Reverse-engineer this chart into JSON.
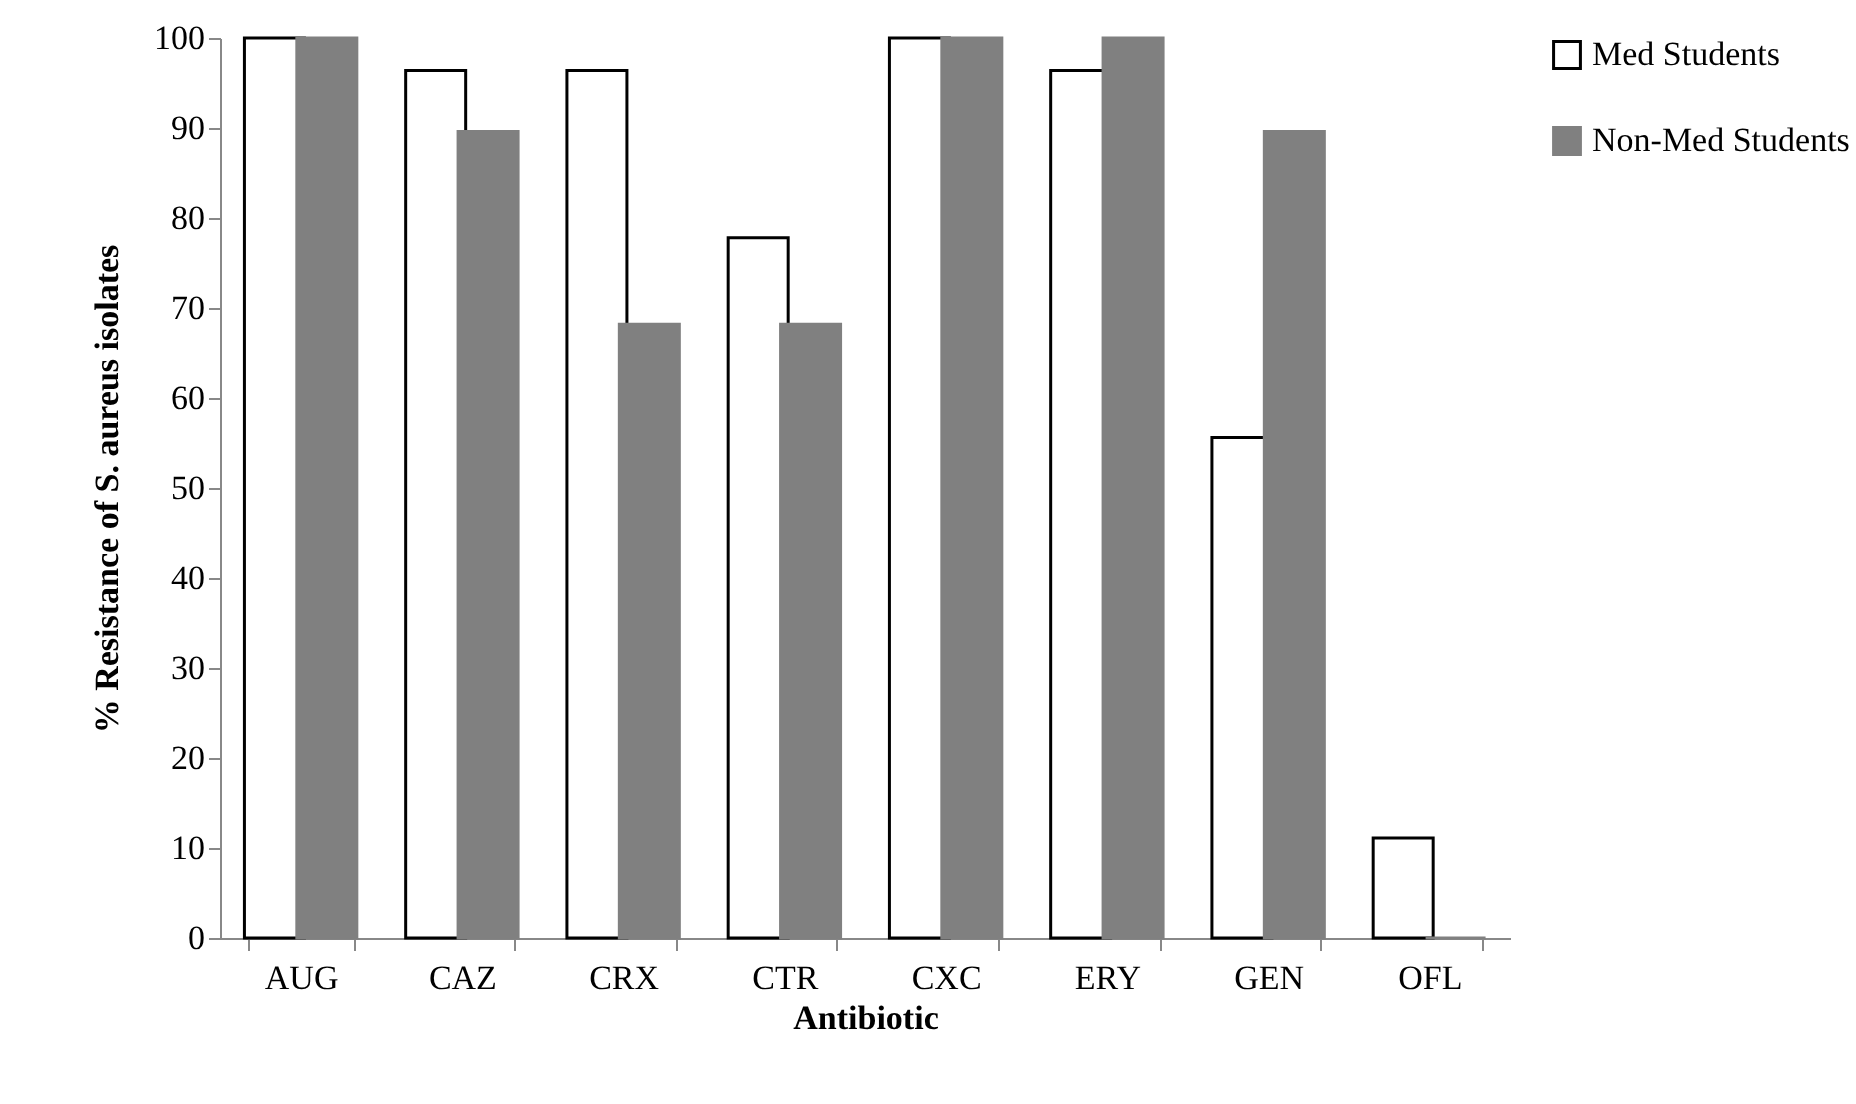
{
  "chart_data": {
    "type": "bar",
    "xlabel": "Antibiotic",
    "ylabel": "% Resistance of S. aureus isolates",
    "categories": [
      "AUG",
      "CAZ",
      "CRX",
      "CTR",
      "CXC",
      "ERY",
      "GEN",
      "OFL"
    ],
    "series": [
      {
        "name": "Med Students",
        "color": "#ffffff",
        "values": [
          100,
          96.4,
          96.4,
          77.8,
          100,
          96.4,
          55.6,
          11.1
        ]
      },
      {
        "name": "Non-Med Students",
        "color": "#808080",
        "values": [
          100,
          89.6,
          68.2,
          68.2,
          100,
          100,
          89.6,
          0
        ]
      }
    ],
    "ylim": [
      0,
      100
    ],
    "yticks": [
      0,
      10,
      20,
      30,
      40,
      50,
      60,
      70,
      80,
      90,
      100
    ],
    "grid": false,
    "legend": "right"
  }
}
